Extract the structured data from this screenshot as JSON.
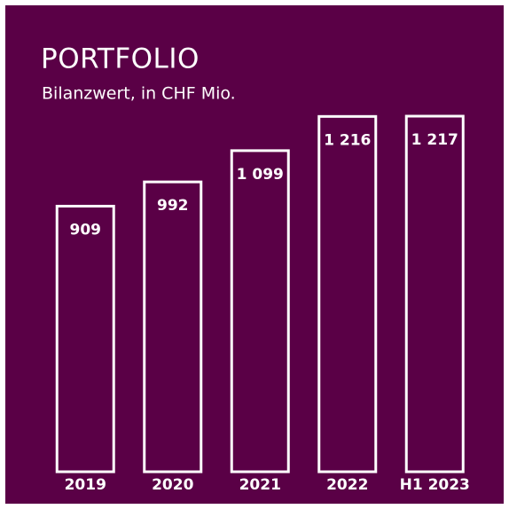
{
  "chart_data": {
    "type": "bar",
    "title": "PORTFOLIO",
    "subtitle": "Bilanzwert, in CHF Mio.",
    "categories": [
      "2019",
      "2020",
      "2021",
      "2022",
      "H1 2023"
    ],
    "values": [
      909,
      992,
      1099,
      1216,
      1217
    ],
    "value_labels": [
      "909",
      "992",
      "1 099",
      "1 216",
      "1 217"
    ],
    "color": "#ffffff",
    "background": "#5a0046"
  }
}
